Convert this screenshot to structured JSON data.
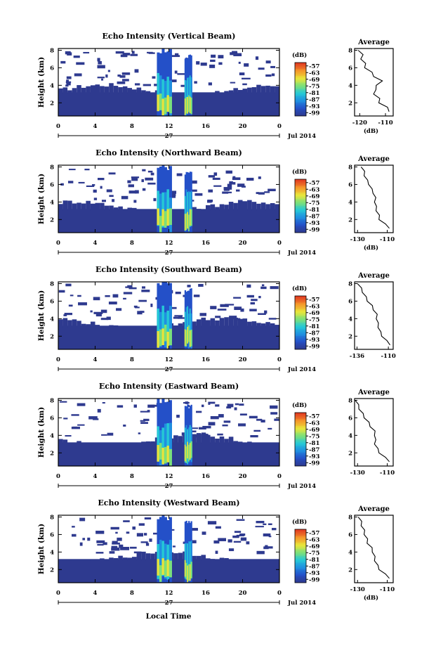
{
  "figure": {
    "xlabel": "Local Time",
    "date_label": "Jul 2014",
    "day_label": "27",
    "colorbar_unit": "(dB)",
    "profile_xlabel": "(dB)",
    "profile_title": "Average"
  },
  "chart_data": [
    {
      "type": "heatmap",
      "title": "Echo Intensity (Vertical Beam)",
      "ylabel": "Height (km)",
      "xticks": [
        "0",
        "4",
        "8",
        "12",
        "16",
        "20",
        "0"
      ],
      "yticks": [
        "2",
        "4",
        "6",
        "8"
      ],
      "colorbar_ticks": [
        "-57",
        "-63",
        "-69",
        "-75",
        "-81",
        "-87",
        "-93",
        "-99"
      ],
      "xlim": [
        0,
        24
      ],
      "ylim": [
        0.5,
        8.2
      ],
      "profile": {
        "title": "Average",
        "xticks": [
          "-120",
          "-110"
        ],
        "yticks": [
          "2",
          "4",
          "6",
          "8"
        ],
        "xlim": [
          -122,
          -107
        ],
        "xlabel": "(dB)",
        "height_km": [
          1,
          1.5,
          2,
          2.5,
          3,
          3.5,
          4,
          4.5,
          5,
          5.5,
          6,
          6.5,
          7,
          7.5,
          8
        ],
        "value_db": [
          -108,
          -110,
          -112,
          -113,
          -114,
          -114.5,
          -113,
          -112,
          -114,
          -116,
          -117.5,
          -118.5,
          -119,
          -119.5,
          -120
        ]
      }
    },
    {
      "type": "heatmap",
      "title": "Echo Intensity (Northward Beam)",
      "ylabel": "Height (km)",
      "xticks": [
        "0",
        "4",
        "8",
        "12",
        "16",
        "20",
        "0"
      ],
      "yticks": [
        "2",
        "4",
        "6",
        "8"
      ],
      "colorbar_ticks": [
        "-57",
        "-63",
        "-69",
        "-75",
        "-81",
        "-87",
        "-93",
        "-99"
      ],
      "xlim": [
        0,
        24
      ],
      "ylim": [
        0.5,
        8.2
      ],
      "profile": {
        "title": "Average",
        "xticks": [
          "-130",
          "-110"
        ],
        "yticks": [
          "2",
          "4",
          "6",
          "8"
        ],
        "xlim": [
          -132,
          -106
        ],
        "xlabel": "(dB)",
        "height_km": [
          1,
          1.5,
          2,
          2.5,
          3,
          3.5,
          4,
          4.5,
          5,
          5.5,
          6,
          6.5,
          7,
          7.5,
          8
        ],
        "value_db": [
          -108,
          -112,
          -115,
          -116,
          -117,
          -118,
          -118,
          -118.5,
          -119,
          -121,
          -122,
          -124,
          -125,
          -126,
          -127
        ]
      }
    },
    {
      "type": "heatmap",
      "title": "Echo Intensity (Southward Beam)",
      "ylabel": "Height (km)",
      "xticks": [
        "0",
        "4",
        "8",
        "12",
        "16",
        "20",
        "0"
      ],
      "yticks": [
        "2",
        "4",
        "6",
        "8"
      ],
      "colorbar_ticks": [
        "-57",
        "-63",
        "-69",
        "-75",
        "-81",
        "-87",
        "-93",
        "-99"
      ],
      "xlim": [
        0,
        24
      ],
      "ylim": [
        0.5,
        8.2
      ],
      "profile": {
        "title": "Average",
        "xticks": [
          "-136",
          "-110"
        ],
        "yticks": [
          "2",
          "4",
          "6",
          "8"
        ],
        "xlim": [
          -138,
          -106
        ],
        "xlabel": "",
        "height_km": [
          1,
          1.5,
          2,
          2.5,
          3,
          3.5,
          4,
          4.5,
          5,
          5.5,
          6,
          6.5,
          7,
          7.5,
          8
        ],
        "value_db": [
          -108,
          -112,
          -115,
          -117,
          -118,
          -119,
          -119.5,
          -120,
          -122,
          -124,
          -127,
          -129,
          -131,
          -133,
          -135
        ]
      }
    },
    {
      "type": "heatmap",
      "title": "Echo Intensity (Eastward Beam)",
      "ylabel": "Height (km)",
      "xticks": [
        "0",
        "4",
        "8",
        "12",
        "16",
        "20",
        "0"
      ],
      "yticks": [
        "2",
        "4",
        "6",
        "8"
      ],
      "colorbar_ticks": [
        "-57",
        "-63",
        "-69",
        "-75",
        "-81",
        "-87",
        "-93",
        "-99"
      ],
      "xlim": [
        0,
        24
      ],
      "ylim": [
        0.5,
        8.2
      ],
      "profile": {
        "title": "Average",
        "xticks": [
          "-130",
          "-110"
        ],
        "yticks": [
          "2",
          "4",
          "6",
          "8"
        ],
        "xlim": [
          -132,
          -106
        ],
        "xlabel": "",
        "height_km": [
          1,
          1.5,
          2,
          2.5,
          3,
          3.5,
          4,
          4.5,
          5,
          5.5,
          6,
          6.5,
          7,
          7.5,
          8
        ],
        "value_db": [
          -108,
          -112,
          -115,
          -117,
          -118,
          -118.5,
          -118,
          -119,
          -121,
          -123,
          -125,
          -127,
          -128.5,
          -130,
          -131
        ]
      }
    },
    {
      "type": "heatmap",
      "title": "Echo Intensity (Westward Beam)",
      "ylabel": "Height (km)",
      "xticks": [
        "0",
        "4",
        "8",
        "12",
        "16",
        "20",
        "0"
      ],
      "yticks": [
        "2",
        "4",
        "6",
        "8"
      ],
      "colorbar_ticks": [
        "-57",
        "-63",
        "-69",
        "-75",
        "-81",
        "-87",
        "-93",
        "-99"
      ],
      "xlim": [
        0,
        24
      ],
      "ylim": [
        0.5,
        8.2
      ],
      "profile": {
        "title": "Average",
        "xticks": [
          "-130",
          "-110"
        ],
        "yticks": [
          "2",
          "4",
          "6",
          "8"
        ],
        "xlim": [
          -132,
          -106
        ],
        "xlabel": "(dB)",
        "height_km": [
          1,
          1.5,
          2,
          2.5,
          3,
          3.5,
          4,
          4.5,
          5,
          5.5,
          6,
          6.5,
          7,
          7.5,
          8
        ],
        "value_db": [
          -108,
          -112,
          -115,
          -117,
          -118,
          -119,
          -119.5,
          -121,
          -123,
          -124,
          -125,
          -126,
          -127,
          -128,
          -129
        ]
      }
    }
  ]
}
